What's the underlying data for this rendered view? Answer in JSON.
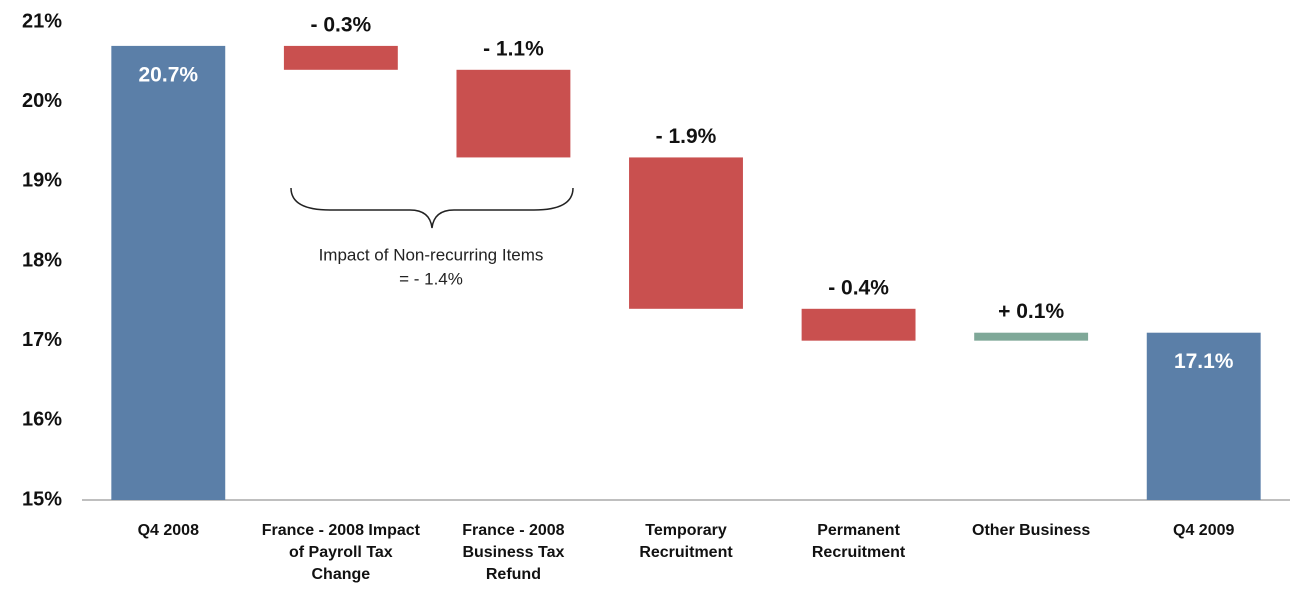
{
  "chart_data": {
    "type": "waterfall",
    "categories": [
      "Q4 2008",
      "France - 2008 Impact of Payroll Tax Change",
      "France - 2008 Business Tax Refund",
      "Temporary Recruitment",
      "Permanent Recruitment",
      "Other Business",
      "Q4 2009"
    ],
    "values": [
      20.7,
      -0.3,
      -1.1,
      -1.9,
      -0.4,
      0.1,
      17.1
    ],
    "value_labels": [
      "20.7%",
      "- 0.3%",
      "- 1.1%",
      "- 1.9%",
      "- 0.4%",
      "+ 0.1%",
      "17.1%"
    ],
    "is_total": [
      true,
      false,
      false,
      false,
      false,
      false,
      true
    ],
    "colors": {
      "total": "#5b7fa8",
      "decrease": "#c9504f",
      "increase": "#7fa898"
    },
    "ylim": [
      15,
      21
    ],
    "yticks": [
      {
        "value": 15,
        "label": "15%"
      },
      {
        "value": 16,
        "label": "16%"
      },
      {
        "value": 17,
        "label": "17%"
      },
      {
        "value": 18,
        "label": "18%"
      },
      {
        "value": 19,
        "label": "19%"
      },
      {
        "value": 20,
        "label": "20%"
      },
      {
        "value": 21,
        "label": "21%"
      }
    ],
    "annotation": [
      "Impact of Non-recurring Items",
      "= - 1.4%"
    ]
  }
}
